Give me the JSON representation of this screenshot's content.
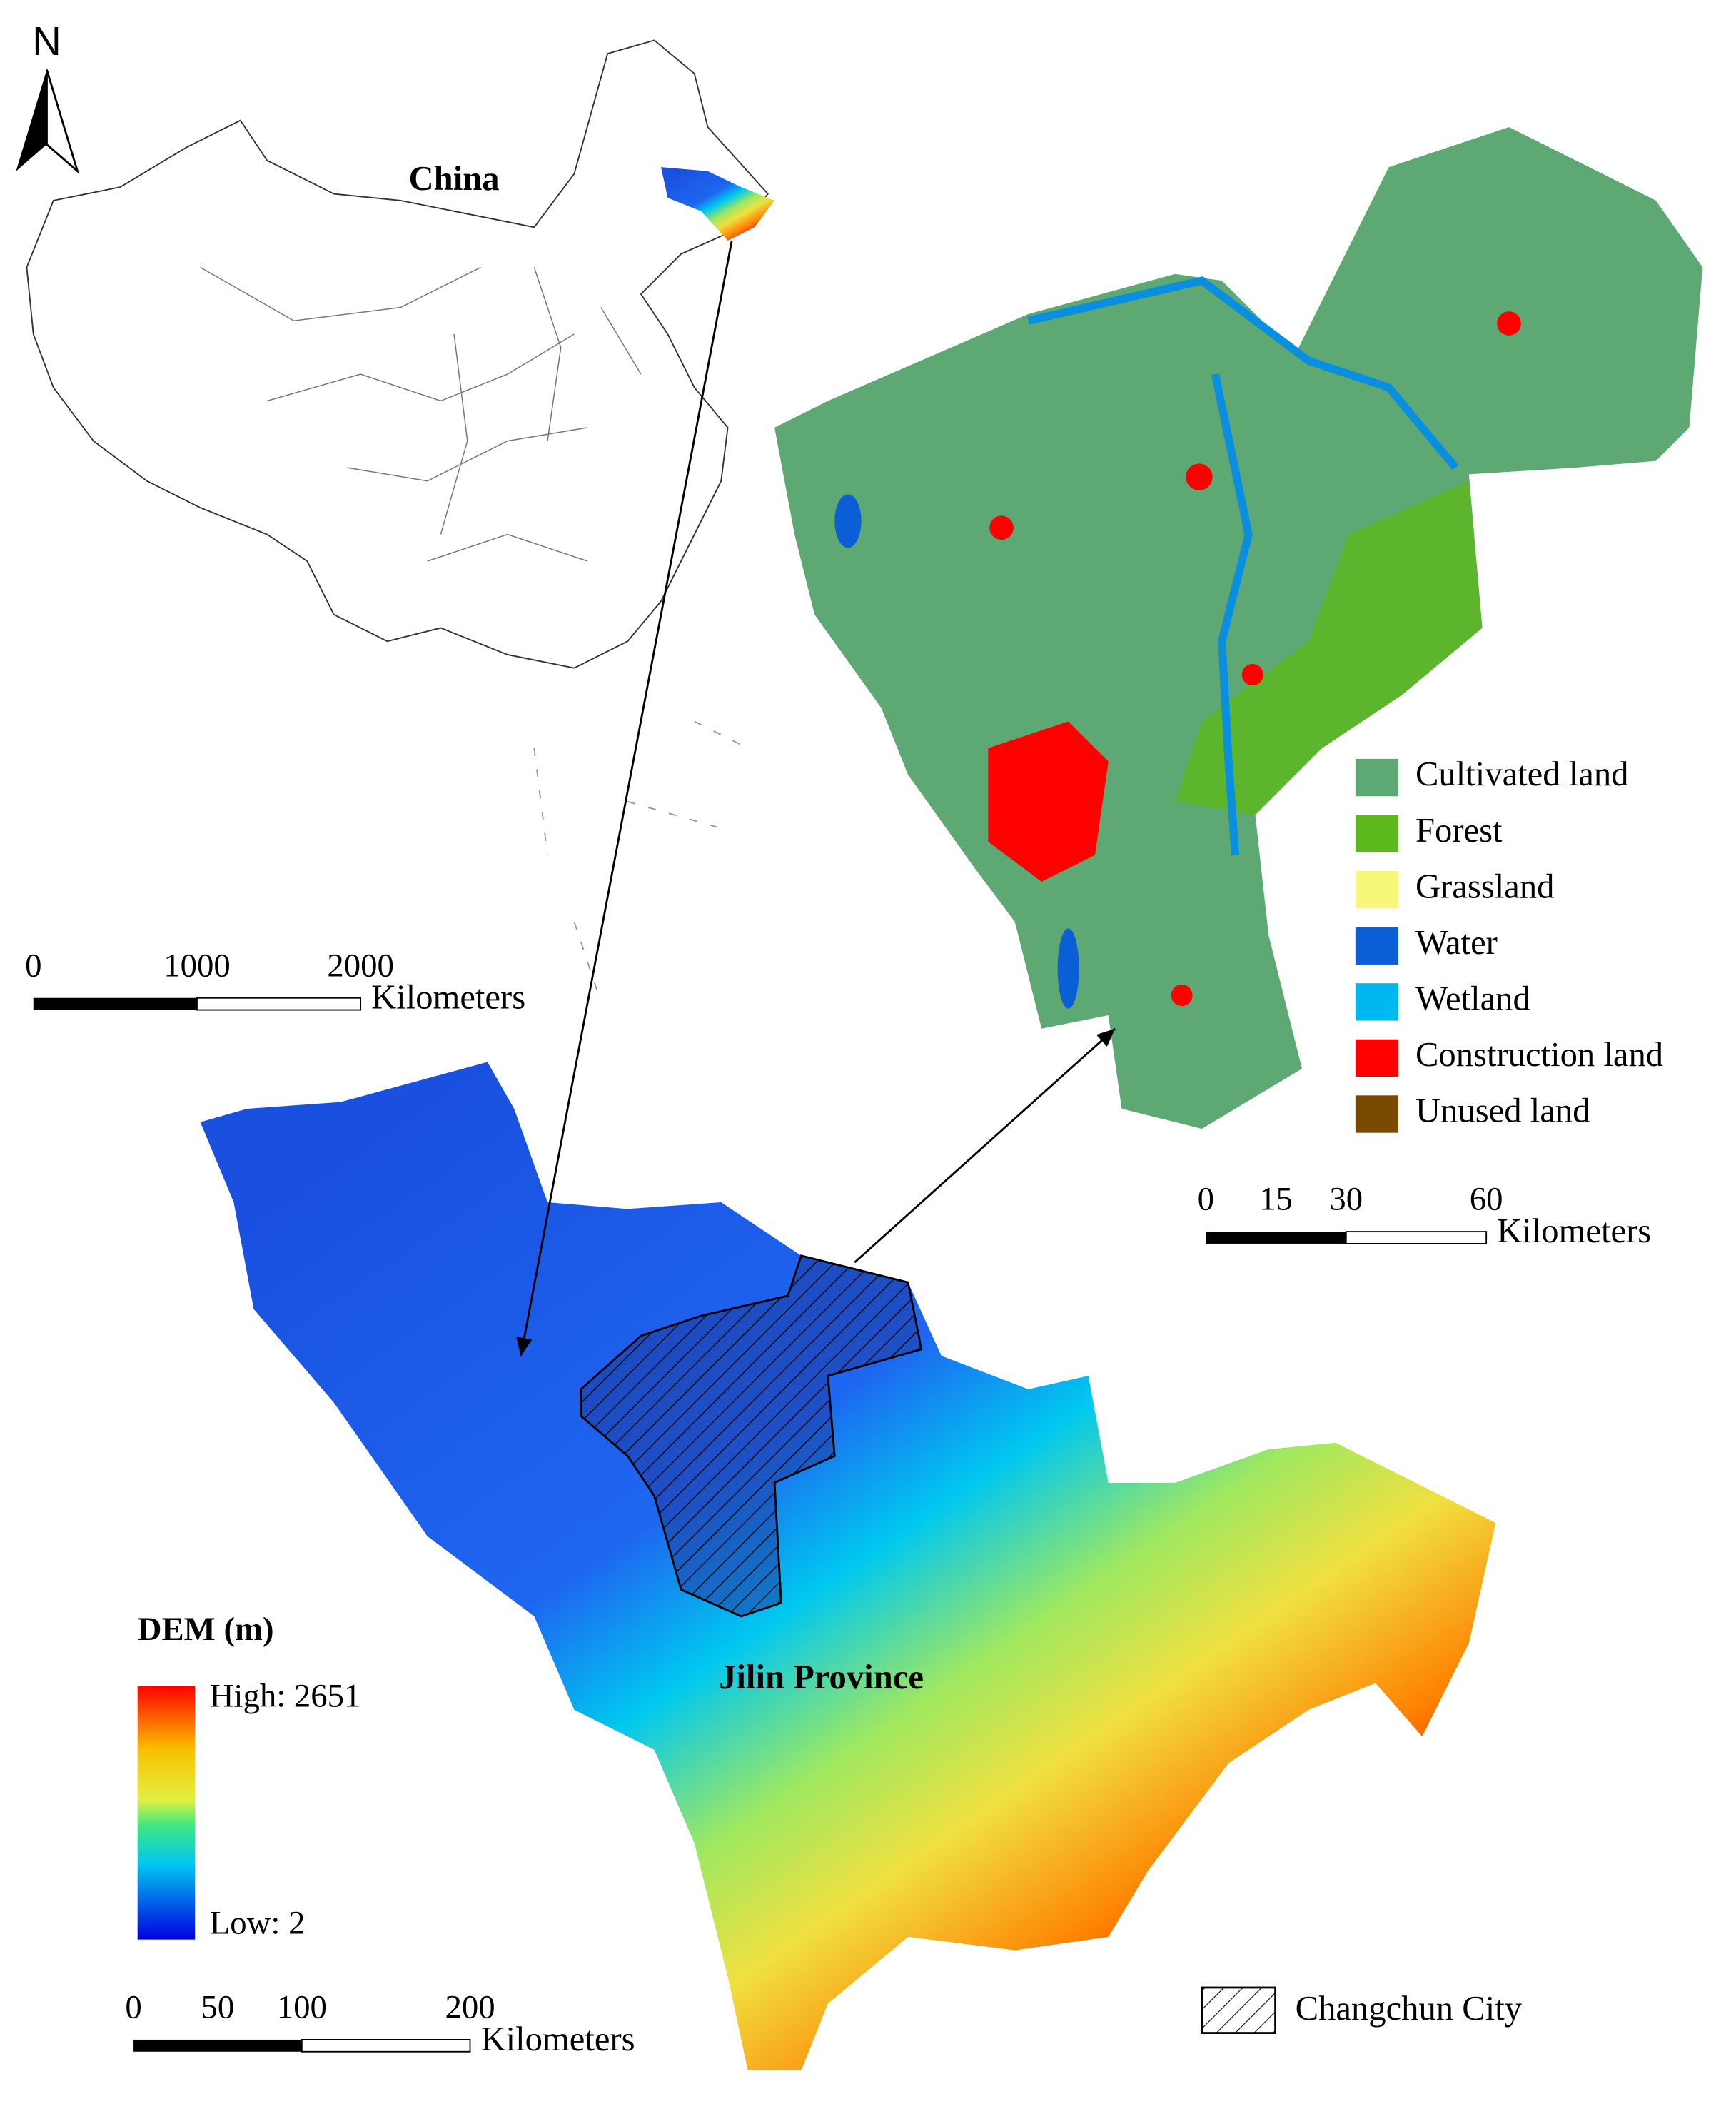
{
  "north_arrow": {
    "label": "N"
  },
  "china_map": {
    "label": "China",
    "scale_bar": {
      "ticks": [
        0,
        1000,
        2000
      ],
      "unit": "Kilometers"
    }
  },
  "changchun_map": {
    "legend": [
      {
        "label": "Cultivated land",
        "color": "#5da873"
      },
      {
        "label": "Forest",
        "color": "#5cb81c"
      },
      {
        "label": "Grassland",
        "color": "#f7f77a"
      },
      {
        "label": "Water",
        "color": "#0a5fd6"
      },
      {
        "label": "Wetland",
        "color": "#00b8f0"
      },
      {
        "label": "Construction land",
        "color": "#ff0000"
      },
      {
        "label": "Unused land",
        "color": "#7a4a00"
      }
    ],
    "scale_bar": {
      "ticks": [
        0,
        15,
        30,
        60
      ],
      "unit": "Kilometers"
    }
  },
  "jilin_map": {
    "label": "Jilin Province",
    "dem_legend": {
      "title": "DEM (m)",
      "high": "High: 2651",
      "low": "Low: 2"
    },
    "hatch_legend": "Changchun City",
    "scale_bar": {
      "ticks": [
        0,
        50,
        100,
        200
      ],
      "unit": "Kilometers"
    }
  }
}
